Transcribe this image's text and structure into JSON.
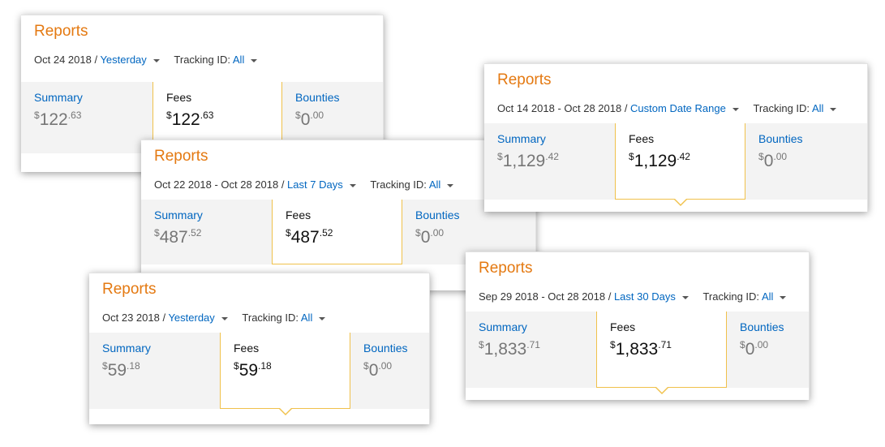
{
  "cards": [
    {
      "title": "Reports",
      "date": "Oct 24 2018 / ",
      "range_label": "Yesterday",
      "tracking_label": "Tracking ID: ",
      "tracking_value": "All",
      "summary": {
        "label": "Summary",
        "currency": "$",
        "whole": "122",
        "cents": ".63"
      },
      "fees": {
        "label": "Fees",
        "currency": "$",
        "whole": "122",
        "cents": ".63"
      },
      "bounties": {
        "label": "Bounties",
        "currency": "$",
        "whole": "0",
        "cents": ".00"
      }
    },
    {
      "title": "Reports",
      "date": "Oct 14 2018 - Oct 28 2018 / ",
      "range_label": "Custom Date Range",
      "tracking_label": "Tracking ID: ",
      "tracking_value": "All",
      "summary": {
        "label": "Summary",
        "currency": "$",
        "whole": "1,129",
        "cents": ".42"
      },
      "fees": {
        "label": "Fees",
        "currency": "$",
        "whole": "1,129",
        "cents": ".42"
      },
      "bounties": {
        "label": "Bounties",
        "currency": "$",
        "whole": "0",
        "cents": ".00"
      }
    },
    {
      "title": "Reports",
      "date": "Oct 22 2018 - Oct 28 2018 / ",
      "range_label": "Last 7 Days",
      "tracking_label": "Tracking ID: ",
      "tracking_value": "All",
      "summary": {
        "label": "Summary",
        "currency": "$",
        "whole": "487",
        "cents": ".52"
      },
      "fees": {
        "label": "Fees",
        "currency": "$",
        "whole": "487",
        "cents": ".52"
      },
      "bounties": {
        "label": "Bounties",
        "currency": "$",
        "whole": "0",
        "cents": ".00"
      }
    },
    {
      "title": "Reports",
      "date": "Sep 29 2018 - Oct 28 2018 / ",
      "range_label": "Last 30 Days",
      "tracking_label": "Tracking ID: ",
      "tracking_value": "All",
      "summary": {
        "label": "Summary",
        "currency": "$",
        "whole": "1,833",
        "cents": ".71"
      },
      "fees": {
        "label": "Fees",
        "currency": "$",
        "whole": "1,833",
        "cents": ".71"
      },
      "bounties": {
        "label": "Bounties",
        "currency": "$",
        "whole": "0",
        "cents": ".00"
      }
    },
    {
      "title": "Reports",
      "date": "Oct 23 2018 / ",
      "range_label": "Yesterday",
      "tracking_label": "Tracking ID: ",
      "tracking_value": "All",
      "summary": {
        "label": "Summary",
        "currency": "$",
        "whole": "59",
        "cents": ".18"
      },
      "fees": {
        "label": "Fees",
        "currency": "$",
        "whole": "59",
        "cents": ".18"
      },
      "bounties": {
        "label": "Bounties",
        "currency": "$",
        "whole": "0",
        "cents": ".00"
      }
    }
  ]
}
